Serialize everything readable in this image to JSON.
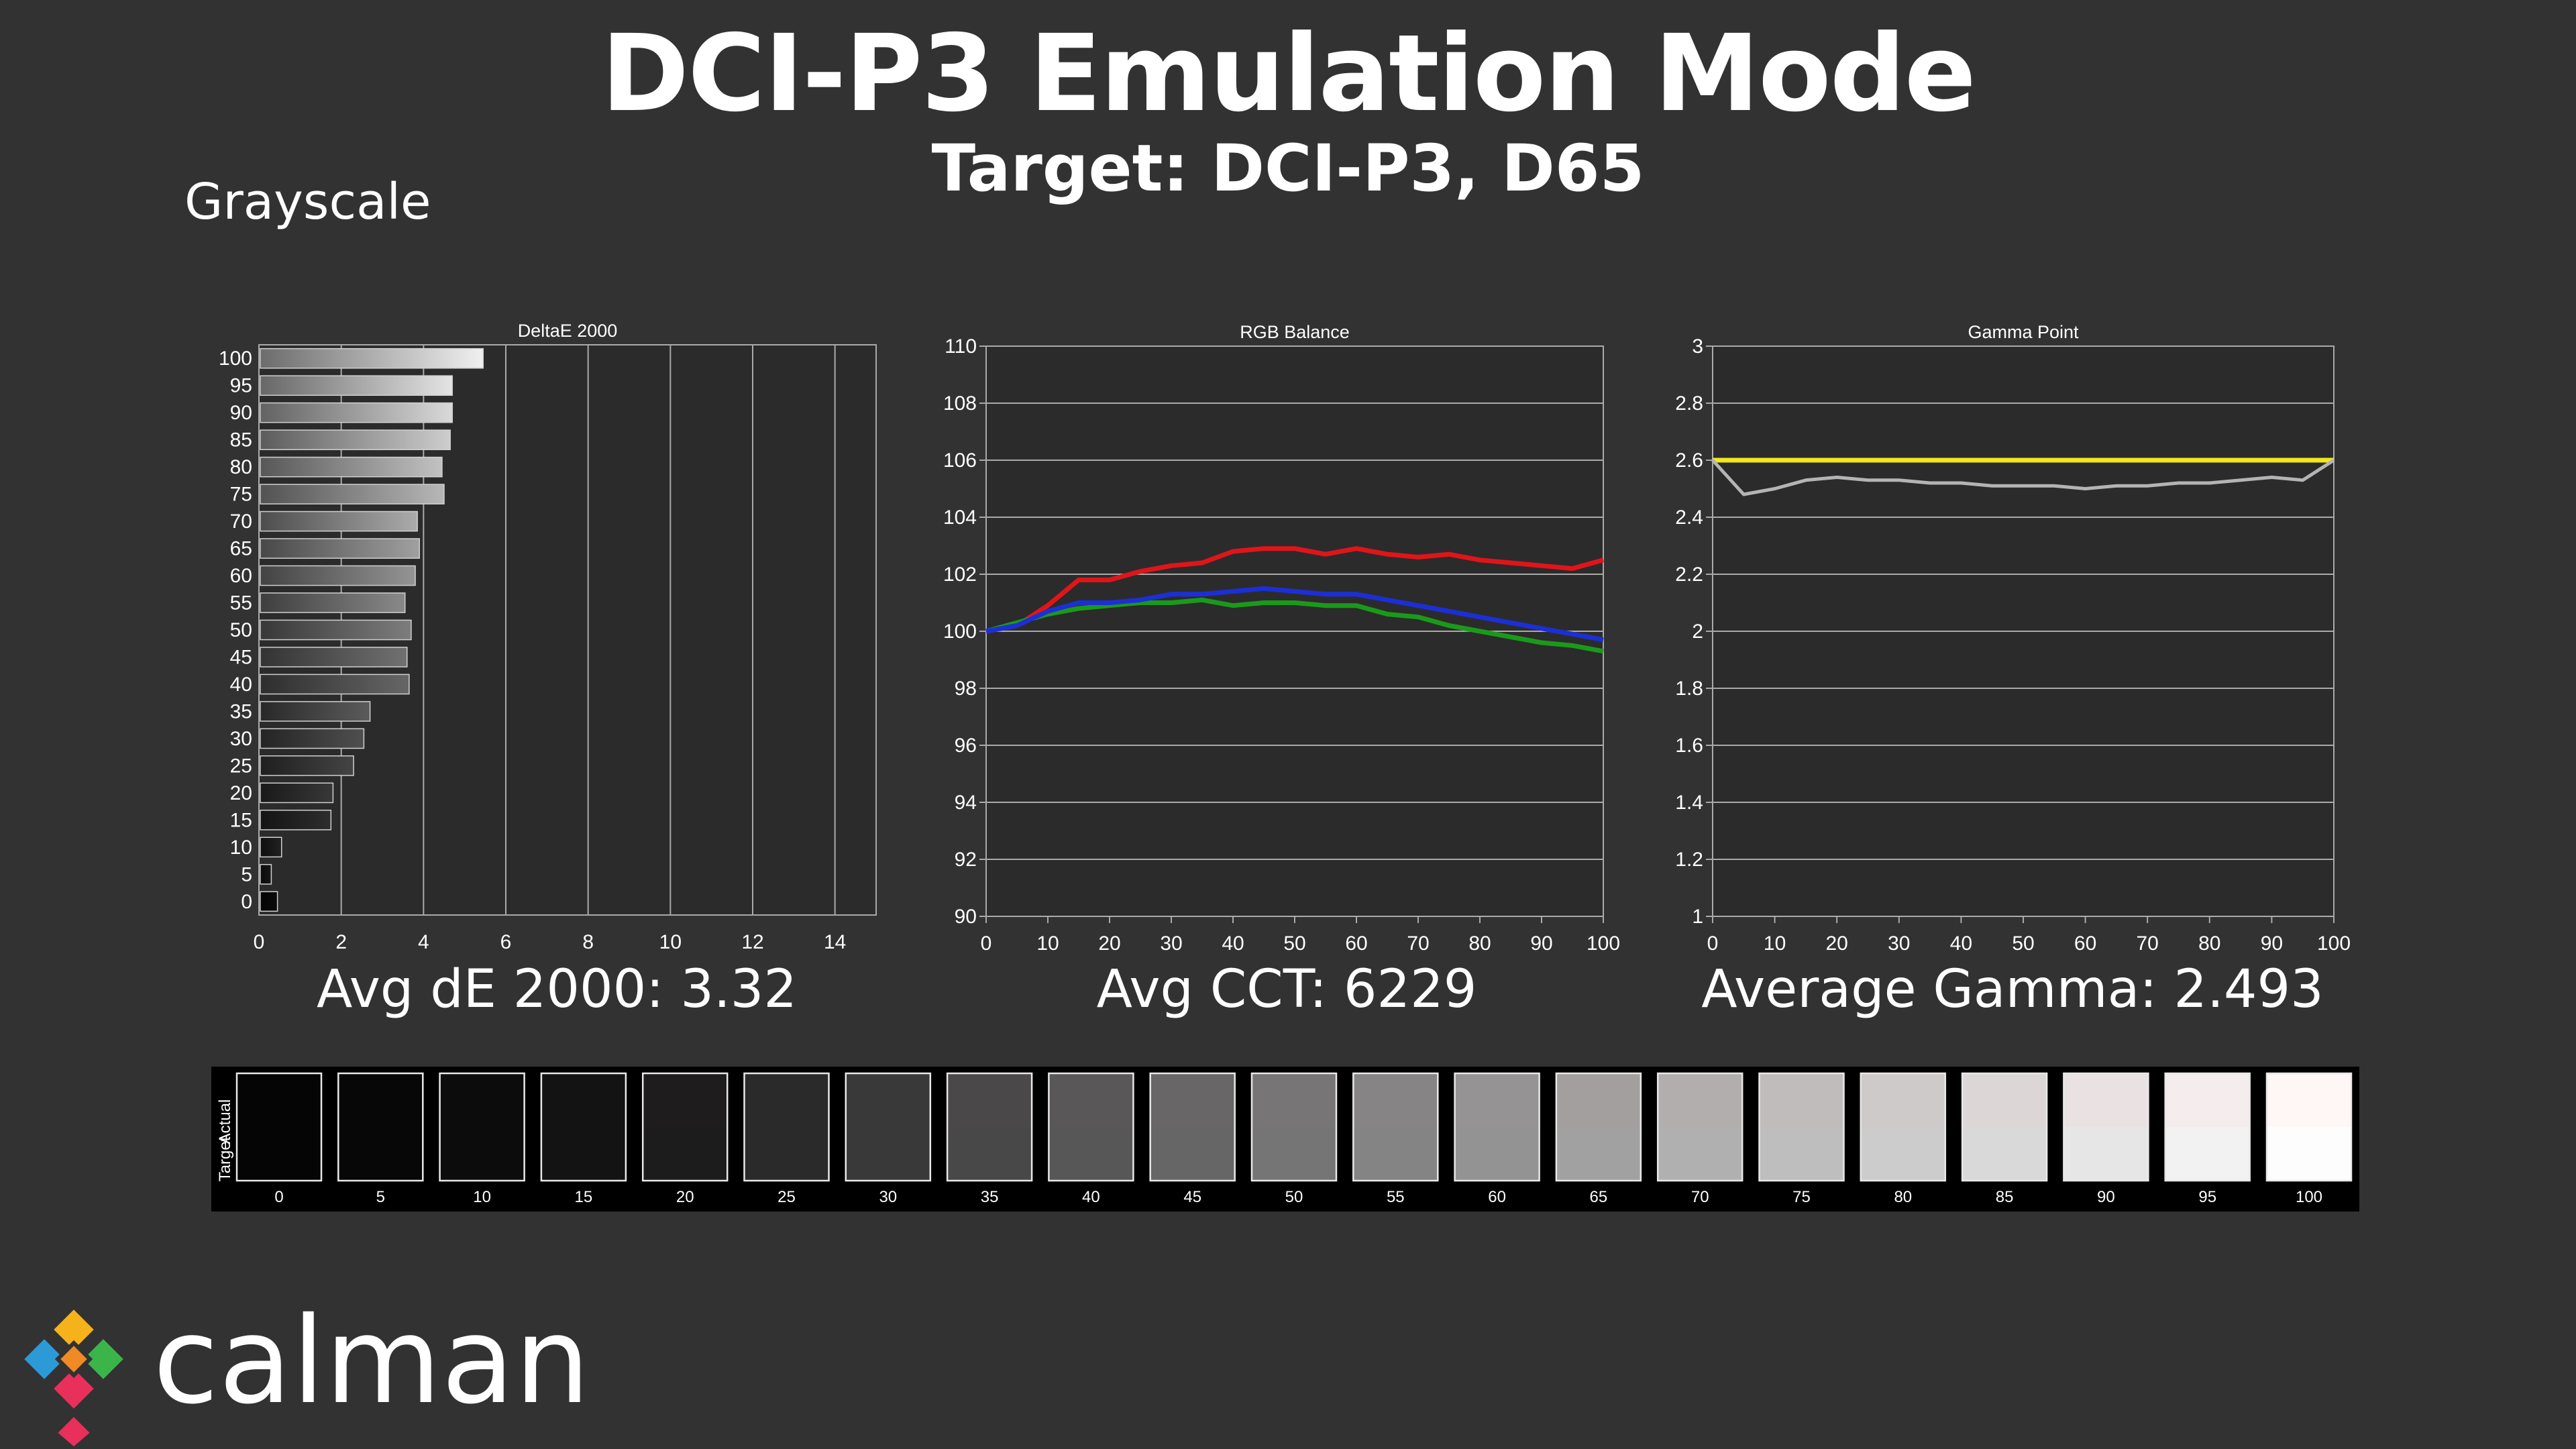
{
  "header": {
    "title": "DCI-P3 Emulation Mode",
    "subtitle": "Target: DCI-P3, D65",
    "section": "Grayscale"
  },
  "summaries": {
    "delta_e": "Avg dE 2000: 3.32",
    "cct": "Avg CCT: 6229",
    "gamma": "Average Gamma: 2.493"
  },
  "colors": {
    "background": "#323232",
    "plot_background": "#2b2b2b",
    "grid": "#aaaaaa",
    "red": "#e0151a",
    "green": "#1a9a1a",
    "blue": "#1c2fd6",
    "gamma_target": "#f2e81a",
    "gamma_actual": "#b4b4b4"
  },
  "chart_data": [
    {
      "type": "bar",
      "orientation": "horizontal",
      "title": "DeltaE 2000",
      "categories": [
        "0",
        "5",
        "10",
        "15",
        "20",
        "25",
        "30",
        "35",
        "40",
        "45",
        "50",
        "55",
        "60",
        "65",
        "70",
        "75",
        "80",
        "85",
        "90",
        "95",
        "100"
      ],
      "values": [
        0.45,
        0.3,
        0.55,
        1.75,
        1.8,
        2.3,
        2.55,
        2.7,
        3.65,
        3.6,
        3.7,
        3.55,
        3.8,
        3.9,
        3.85,
        4.5,
        4.45,
        4.65,
        4.7,
        4.7,
        5.45
      ],
      "xlim": [
        0,
        15
      ],
      "xticks": [
        0,
        2,
        4,
        6,
        8,
        10,
        12,
        14
      ],
      "grid": true
    },
    {
      "type": "line",
      "title": "RGB Balance",
      "x": [
        0,
        5,
        10,
        15,
        20,
        25,
        30,
        35,
        40,
        45,
        50,
        55,
        60,
        65,
        70,
        75,
        80,
        85,
        90,
        95,
        100
      ],
      "series": [
        {
          "color": "red",
          "values": [
            100.0,
            100.2,
            100.9,
            101.8,
            101.8,
            102.1,
            102.3,
            102.4,
            102.8,
            102.9,
            102.9,
            102.7,
            102.9,
            102.7,
            102.6,
            102.7,
            102.5,
            102.4,
            102.3,
            102.2,
            102.5
          ]
        },
        {
          "color": "green",
          "values": [
            100.0,
            100.3,
            100.6,
            100.8,
            100.9,
            101.0,
            101.0,
            101.1,
            100.9,
            101.0,
            101.0,
            100.9,
            100.9,
            100.6,
            100.5,
            100.2,
            100.0,
            99.8,
            99.6,
            99.5,
            99.3
          ]
        },
        {
          "color": "blue",
          "values": [
            100.0,
            100.2,
            100.7,
            101.0,
            101.0,
            101.1,
            101.3,
            101.3,
            101.4,
            101.5,
            101.4,
            101.3,
            101.3,
            101.1,
            100.9,
            100.7,
            100.5,
            100.3,
            100.1,
            99.9,
            99.7
          ]
        }
      ],
      "ylim": [
        90,
        110
      ],
      "yticks": [
        90,
        92,
        94,
        96,
        98,
        100,
        102,
        104,
        106,
        108,
        110
      ],
      "xticks": [
        0,
        10,
        20,
        30,
        40,
        50,
        60,
        70,
        80,
        90,
        100
      ],
      "grid": true
    },
    {
      "type": "line",
      "title": "Gamma Point",
      "x": [
        0,
        5,
        10,
        15,
        20,
        25,
        30,
        35,
        40,
        45,
        50,
        55,
        60,
        65,
        70,
        75,
        80,
        85,
        90,
        95,
        100
      ],
      "series": [
        {
          "color": "target",
          "values": [
            2.6,
            2.6,
            2.6,
            2.6,
            2.6,
            2.6,
            2.6,
            2.6,
            2.6,
            2.6,
            2.6,
            2.6,
            2.6,
            2.6,
            2.6,
            2.6,
            2.6,
            2.6,
            2.6,
            2.6,
            2.6
          ]
        },
        {
          "color": "actual",
          "values": [
            2.6,
            2.48,
            2.5,
            2.53,
            2.54,
            2.53,
            2.53,
            2.52,
            2.52,
            2.51,
            2.51,
            2.51,
            2.5,
            2.51,
            2.51,
            2.52,
            2.52,
            2.53,
            2.54,
            2.53,
            2.6
          ]
        }
      ],
      "ylim": [
        1,
        3
      ],
      "yticks": [
        "1",
        "1.2",
        "1.4",
        "1.6",
        "1.8",
        "2",
        "2.2",
        "2.4",
        "2.6",
        "2.8",
        "3"
      ],
      "xticks": [
        0,
        10,
        20,
        30,
        40,
        50,
        60,
        70,
        80,
        90,
        100
      ],
      "grid": true
    }
  ],
  "swatches": {
    "row_labels": [
      "Actual",
      "Target"
    ],
    "labels": [
      "0",
      "5",
      "10",
      "15",
      "20",
      "25",
      "30",
      "35",
      "40",
      "45",
      "50",
      "55",
      "60",
      "65",
      "70",
      "75",
      "80",
      "85",
      "90",
      "95",
      "100"
    ],
    "actual_colors": [
      "#050505",
      "#070707",
      "#0c0c0c",
      "#131313",
      "#1e1c1c",
      "#2b2a2a",
      "#3a3939",
      "#4a4848",
      "#595757",
      "#686666",
      "#777575",
      "#868484",
      "#959393",
      "#a39f9f",
      "#b2aeae",
      "#c1bcbc",
      "#cfcaca",
      "#ddd6d6",
      "#e9e1e2",
      "#f4eced",
      "#fff6f6"
    ],
    "target_colors": [
      "#050505",
      "#070707",
      "#0c0c0c",
      "#131313",
      "#1c1c1c",
      "#2a2a2a",
      "#393939",
      "#484848",
      "#575757",
      "#666666",
      "#757575",
      "#848484",
      "#939393",
      "#a1a1a1",
      "#b0b0b0",
      "#bebebe",
      "#cccccc",
      "#d9d9d9",
      "#e6e6e6",
      "#f2f2f2",
      "#fdfdfd"
    ]
  },
  "logo": {
    "text": "calman",
    "colors": [
      "#f6b21b",
      "#2d9ad8",
      "#3bb54a",
      "#e8305a",
      "#f08a24"
    ]
  }
}
